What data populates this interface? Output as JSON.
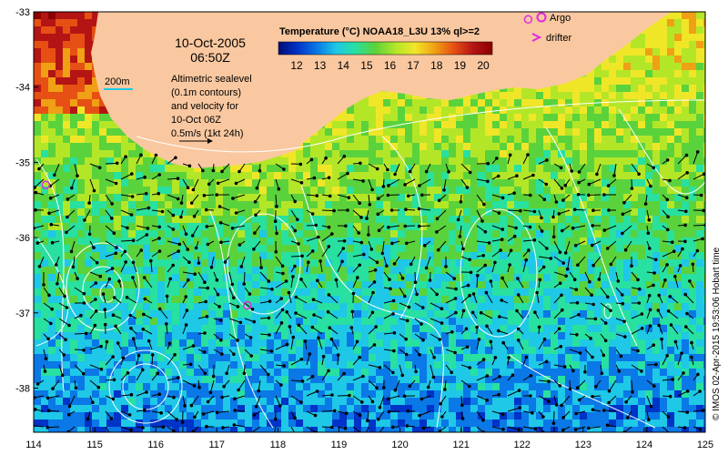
{
  "map": {
    "title_line1": "10-Oct-2005",
    "title_line2": "06:50Z",
    "scale_label": "200m",
    "sealevel_caption": [
      "Altimetric sealevel",
      "(0.1m contours)",
      "and velocity for",
      "10-Oct 06Z",
      "0.5m/s (1kt 24h)"
    ],
    "colorbar": {
      "title": "Temperature (°C) NOAA18_L3U 13% ql>=2",
      "ticks": [
        "12",
        "13",
        "14",
        "15",
        "16",
        "17",
        "18",
        "19",
        "20"
      ],
      "colors": [
        "#000d78",
        "#0033c8",
        "#0a78e6",
        "#1ec8e6",
        "#28e0a0",
        "#5ad23c",
        "#b4e628",
        "#f0e628",
        "#f0a014",
        "#e65014",
        "#b41414",
        "#8c0000"
      ]
    },
    "legend": {
      "argo_label": "Argo",
      "drifter_label": "drifter",
      "argo_color": "#e028e0",
      "drifter_color": "#e028e0"
    },
    "x_ticks": [
      "114",
      "115",
      "116",
      "117",
      "118",
      "119",
      "120",
      "121",
      "122",
      "123",
      "124",
      "125"
    ],
    "y_ticks": [
      "-33",
      "-34",
      "-35",
      "-36",
      "-37",
      "-38"
    ],
    "credit": "© IMOS 02-Apr-2015 19:53:06 Hobart time",
    "land_color": "#fac8a0",
    "argo_floats": [
      {
        "lon": 114.2,
        "lat": -35.3
      },
      {
        "lon": 117.5,
        "lat": -36.9
      },
      {
        "lon": 122.1,
        "lat": -33.1
      }
    ]
  }
}
